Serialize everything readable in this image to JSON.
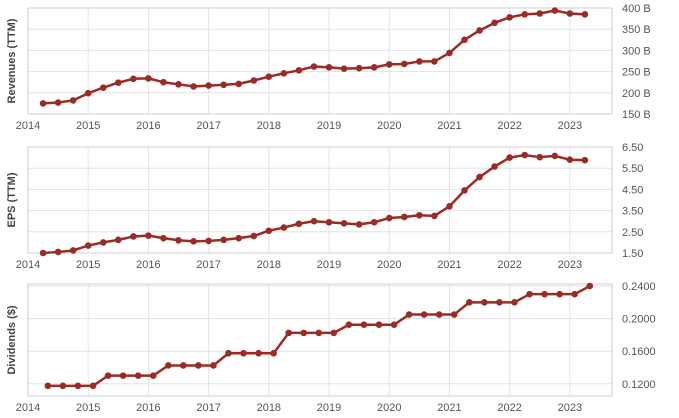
{
  "chart_data": [
    {
      "type": "line",
      "ylabel": "Revenues (TTM)",
      "ylim": [
        150,
        400
      ],
      "yticks": [
        150,
        200,
        250,
        300,
        350,
        400
      ],
      "ytick_labels": [
        "150 B",
        "200 B",
        "250 B",
        "300 B",
        "350 B",
        "400 B"
      ],
      "xlim": [
        2014.0,
        2023.7
      ],
      "xticks": [
        2014,
        2015,
        2016,
        2017,
        2018,
        2019,
        2020,
        2021,
        2022,
        2023
      ],
      "xtick_labels": [
        "2014",
        "2015",
        "2016",
        "2017",
        "2018",
        "2019",
        "2020",
        "2021",
        "2022",
        "2023"
      ],
      "series": [
        {
          "color": "#9b2c25",
          "x": [
            2014.25,
            2014.5,
            2014.75,
            2015.0,
            2015.25,
            2015.5,
            2015.75,
            2016.0,
            2016.25,
            2016.5,
            2016.75,
            2017.0,
            2017.25,
            2017.5,
            2017.75,
            2018.0,
            2018.25,
            2018.5,
            2018.75,
            2019.0,
            2019.25,
            2019.5,
            2019.75,
            2020.0,
            2020.25,
            2020.5,
            2020.75,
            2021.0,
            2021.25,
            2021.5,
            2021.75,
            2022.0,
            2022.25,
            2022.5,
            2022.75,
            2023.0,
            2023.25
          ],
          "values": [
            175,
            177,
            182,
            199,
            212,
            224,
            233,
            234,
            225,
            220,
            215,
            217,
            219,
            221,
            229,
            238,
            246,
            253,
            262,
            260,
            257,
            258,
            260,
            267,
            268,
            274,
            274,
            294,
            325,
            347,
            365,
            378,
            385,
            387,
            394,
            387,
            385
          ]
        }
      ]
    },
    {
      "type": "line",
      "ylabel": "EPS (TTM)",
      "ylim": [
        1.5,
        6.5
      ],
      "yticks": [
        1.5,
        2.5,
        3.5,
        4.5,
        5.5,
        6.5
      ],
      "ytick_labels": [
        "1.50",
        "2.50",
        "3.50",
        "4.50",
        "5.50",
        "6.50"
      ],
      "xlim": [
        2014.0,
        2023.7
      ],
      "xticks": [
        2014,
        2015,
        2016,
        2017,
        2018,
        2019,
        2020,
        2021,
        2022,
        2023
      ],
      "xtick_labels": [
        "2014",
        "2015",
        "2016",
        "2017",
        "2018",
        "2019",
        "2020",
        "2021",
        "2022",
        "2023"
      ],
      "series": [
        {
          "color": "#9b2c25",
          "x": [
            2014.25,
            2014.5,
            2014.75,
            2015.0,
            2015.25,
            2015.5,
            2015.75,
            2016.0,
            2016.25,
            2016.5,
            2016.75,
            2017.0,
            2017.25,
            2017.5,
            2017.75,
            2018.0,
            2018.25,
            2018.5,
            2018.75,
            2019.0,
            2019.25,
            2019.5,
            2019.75,
            2020.0,
            2020.25,
            2020.5,
            2020.75,
            2021.0,
            2021.25,
            2021.5,
            2021.75,
            2022.0,
            2022.25,
            2022.5,
            2022.75,
            2023.0,
            2023.25
          ],
          "values": [
            1.5,
            1.55,
            1.62,
            1.85,
            2.0,
            2.12,
            2.28,
            2.32,
            2.2,
            2.1,
            2.05,
            2.07,
            2.12,
            2.2,
            2.3,
            2.55,
            2.7,
            2.88,
            3.0,
            2.95,
            2.9,
            2.85,
            2.95,
            3.15,
            3.2,
            3.28,
            3.25,
            3.7,
            4.45,
            5.08,
            5.58,
            6.0,
            6.12,
            6.02,
            6.08,
            5.9,
            5.88
          ]
        }
      ]
    },
    {
      "type": "line",
      "ylabel": "Dividends ($)",
      "ylim": [
        0.105,
        0.2425
      ],
      "yticks": [
        0.12,
        0.16,
        0.2,
        0.24
      ],
      "ytick_labels": [
        "0.1200",
        "0.1600",
        "0.2000",
        "0.2400"
      ],
      "xlim": [
        2014.0,
        2023.7
      ],
      "xticks": [
        2014,
        2015,
        2016,
        2017,
        2018,
        2019,
        2020,
        2021,
        2022,
        2023
      ],
      "xtick_labels": [
        "2014",
        "2015",
        "2016",
        "2017",
        "2018",
        "2019",
        "2020",
        "2021",
        "2022",
        "2023"
      ],
      "series": [
        {
          "color": "#9b2c25",
          "x": [
            2014.33,
            2014.58,
            2014.83,
            2015.08,
            2015.33,
            2015.58,
            2015.83,
            2016.08,
            2016.33,
            2016.58,
            2016.83,
            2017.08,
            2017.33,
            2017.58,
            2017.83,
            2018.08,
            2018.33,
            2018.58,
            2018.83,
            2019.08,
            2019.33,
            2019.58,
            2019.83,
            2020.08,
            2020.33,
            2020.58,
            2020.83,
            2021.08,
            2021.33,
            2021.58,
            2021.83,
            2022.08,
            2022.33,
            2022.58,
            2022.83,
            2023.08,
            2023.33
          ],
          "values": [
            0.1175,
            0.1175,
            0.1175,
            0.1175,
            0.13,
            0.13,
            0.13,
            0.13,
            0.1425,
            0.1425,
            0.1425,
            0.1425,
            0.1575,
            0.1575,
            0.1575,
            0.1575,
            0.1825,
            0.1825,
            0.1825,
            0.1825,
            0.1925,
            0.1925,
            0.1925,
            0.1925,
            0.205,
            0.205,
            0.205,
            0.205,
            0.22,
            0.22,
            0.22,
            0.22,
            0.23,
            0.23,
            0.23,
            0.23,
            0.24
          ]
        }
      ]
    }
  ]
}
